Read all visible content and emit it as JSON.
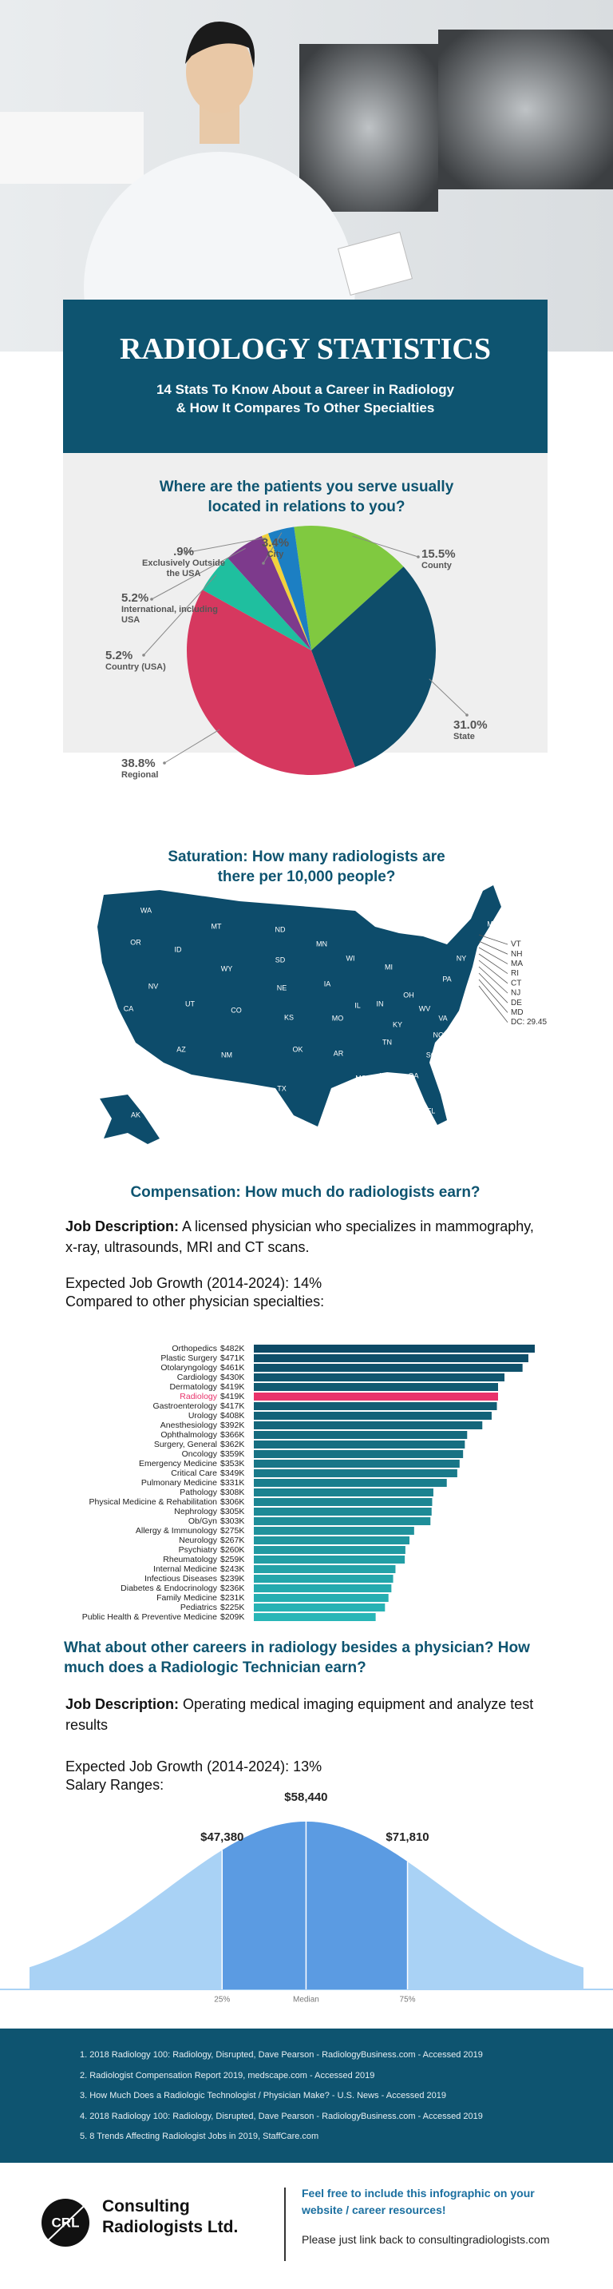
{
  "header": {
    "title": "RADIOLOGY STATISTICS",
    "subtitle": [
      "14 Stats To Know About a Career in Radiology",
      "& How It Compares To Other Specialties"
    ]
  },
  "chart_data": [
    {
      "type": "pie",
      "title": "Where are the patients you serve usually located in relations to you?",
      "categories": [
        "County",
        "State",
        "Regional",
        "Country (USA)",
        "International, including USA",
        "Exclusively Outside the USA",
        "City"
      ],
      "values": [
        15.5,
        31.0,
        38.8,
        5.2,
        5.2,
        0.9,
        3.4
      ],
      "value_labels": [
        "15.5%",
        "31.0%",
        "38.8%",
        "5.2%",
        "5.2%",
        ".9%",
        "3.4%"
      ],
      "colors": [
        "#80c940",
        "#0e4d6a",
        "#d6385f",
        "#1fbf9f",
        "#7d3a8c",
        "#f2d23c",
        "#1c7fc3"
      ]
    },
    {
      "type": "bar",
      "orientation": "horizontal",
      "categories": [
        "Orthopedics",
        "Plastic Surgery",
        "Otolaryngology",
        "Cardiology",
        "Dermatology",
        "Radiology",
        "Gastroenterology",
        "Urology",
        "Anesthesiology",
        "Ophthalmology",
        "Surgery, General",
        "Oncology",
        "Emergency Medicine",
        "Critical Care",
        "Pulmonary Medicine",
        "Pathology",
        "Physical Medicine & Rehabilitation",
        "Nephrology",
        "Ob/Gyn",
        "Allergy & Immunology",
        "Neurology",
        "Psychiatry",
        "Rheumatology",
        "Internal Medicine",
        "Infectious Diseases",
        "Diabetes & Endocrinology",
        "Family Medicine",
        "Pediatrics",
        "Public Health & Preventive Medicine"
      ],
      "values": [
        482,
        471,
        461,
        430,
        419,
        419,
        417,
        408,
        392,
        366,
        362,
        359,
        353,
        349,
        331,
        308,
        306,
        305,
        303,
        275,
        267,
        260,
        259,
        243,
        239,
        236,
        231,
        225,
        209
      ],
      "value_labels": [
        "$482K",
        "$471K",
        "$461K",
        "$430K",
        "$419K",
        "$419K",
        "$417K",
        "$408K",
        "$392K",
        "$366K",
        "$362K",
        "$359K",
        "$353K",
        "$349K",
        "$331K",
        "$308K",
        "$306K",
        "$305K",
        "$303K",
        "$275K",
        "$267K",
        "$260K",
        "$259K",
        "$243K",
        "$239K",
        "$236K",
        "$231K",
        "$225K",
        "$209K"
      ],
      "colors": [
        "#0d4a66",
        "#0e4e69",
        "#0f526c",
        "#10566f",
        "#115a72",
        "#e8336b",
        "#125e75",
        "#136278",
        "#14667b",
        "#156a7e",
        "#166e81",
        "#177284",
        "#187687",
        "#197a8a",
        "#1a7e8d",
        "#1b8290",
        "#1c8693",
        "#1d8a96",
        "#1e8e99",
        "#1f929c",
        "#20969f",
        "#219aa2",
        "#229ea5",
        "#23a2a8",
        "#24a6ab",
        "#25aaae",
        "#26aeb1",
        "#27b2b4",
        "#28b6b7"
      ]
    },
    {
      "type": "bell",
      "categories": [
        "25%",
        "Median",
        "75%"
      ],
      "values": [
        47380,
        58440,
        71810
      ],
      "value_labels": [
        "$47,380",
        "$58,440",
        "$71,810"
      ],
      "xlim": [
        22000,
        95000
      ],
      "colors": {
        "tails": "#a9d2f5",
        "band": "#5b9be2"
      }
    }
  ],
  "map": {
    "title": "Saturation: How many radiologists are there per 10,000 people?",
    "color": "#0d4c6b",
    "states": [
      "WA",
      "OR",
      "CA",
      "NV",
      "ID",
      "MT",
      "WY",
      "UT",
      "AZ",
      "NM",
      "CO",
      "ND",
      "SD",
      "NE",
      "KS",
      "OK",
      "TX",
      "MN",
      "IA",
      "MO",
      "AR",
      "LA",
      "WI",
      "IL",
      "MI",
      "IN",
      "OH",
      "KY",
      "TN",
      "MS",
      "AL",
      "GA",
      "FL",
      "SC",
      "NC",
      "VA",
      "WV",
      "PA",
      "NY",
      "ME",
      "AK"
    ],
    "small_states": [
      "VT",
      "NH",
      "MA",
      "RI",
      "CT",
      "NJ",
      "DE",
      "MD",
      "DC: 29.45"
    ]
  },
  "compensation": {
    "heading": "Compensation: How much do radiologists earn?",
    "job_label": "Job Description:",
    "job_text": "A licensed physician who specializes in mammography, x-ray, ultrasounds, MRI and CT scans.",
    "growth": "Expected Job Growth (2014-2024): 14%",
    "compare": "Compared to other physician specialties:"
  },
  "technician": {
    "heading": "What about other careers in radiology besides a physician? How much does a Radiologic Technician earn?",
    "job_label": "Job Description:",
    "job_text": "Operating medical imaging equipment and analyze test results",
    "growth": "Expected Job Growth (2014-2024): 13%",
    "salary": "Salary Ranges:"
  },
  "references": [
    "1. 2018 Radiology 100: Radiology, Disrupted, Dave Pearson - RadiologyBusiness.com - Accessed 2019",
    "2.  Radiologist Compensation Report 2019, medscape.com - Accessed 2019",
    "3. How Much Does a Radiologic Technologist / Physician Make? - U.S. News - Accessed 2019",
    "4. 2018 Radiology 100: Radiology, Disrupted, Dave Pearson - RadiologyBusiness.com - Accessed 2019",
    "5. 8 Trends Affecting Radiologist Jobs in 2019, StaffCare.com"
  ],
  "footer": {
    "logo": "CRL",
    "company": [
      "Consulting",
      "Radiologists Ltd."
    ],
    "cta": "Feel free to include this infographic on your website / career resources!",
    "link": "Please just link back to consultingradiologists.com"
  }
}
